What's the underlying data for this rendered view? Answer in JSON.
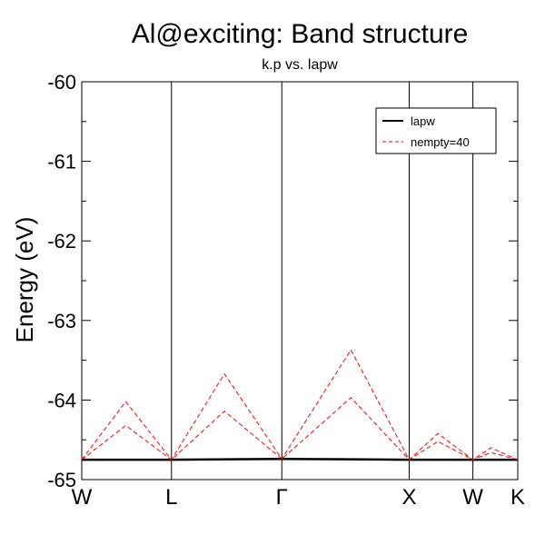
{
  "chart_data": {
    "type": "line",
    "title": "Al@exciting: Band structure",
    "subtitle": "k.p vs. lapw",
    "xlabel": "",
    "ylabel": "Energy (eV)",
    "ylim": [
      -65,
      -60
    ],
    "yticks": [
      "-65",
      "-64",
      "-63",
      "-62",
      "-61",
      "-60"
    ],
    "xlim": [
      0,
      4.86
    ],
    "xticks": [
      {
        "label": "W",
        "x": 0
      },
      {
        "label": "L",
        "x": 1.0
      },
      {
        "label": "Γ",
        "x": 2.23
      },
      {
        "label": "X",
        "x": 3.65
      },
      {
        "label": "W",
        "x": 4.36
      },
      {
        "label": "K",
        "x": 4.86
      }
    ],
    "vertical_lines_at": [
      1.0,
      2.23,
      3.65,
      4.36
    ],
    "legend": {
      "position": "top-right"
    },
    "series": [
      {
        "name": "lapw",
        "color": "#000000",
        "style": "solid",
        "x": [
          0,
          1.0,
          2.23,
          3.65,
          4.36,
          4.86
        ],
        "y": [
          -64.75,
          -64.75,
          -64.74,
          -64.75,
          -64.75,
          -64.75
        ]
      },
      {
        "name": "nempty=40",
        "color": "#ff0000",
        "style": "dashed",
        "bands": [
          {
            "x": [
              0,
              0.49,
              1.0,
              1.59,
              2.23,
              3.0,
              3.65,
              3.97,
              4.36,
              4.56,
              4.86
            ],
            "y": [
              -64.75,
              -64.02,
              -64.75,
              -63.67,
              -64.74,
              -63.37,
              -64.75,
              -64.42,
              -64.75,
              -64.6,
              -64.75
            ]
          },
          {
            "x": [
              0,
              0.49,
              1.0,
              1.59,
              2.23,
              3.0,
              3.65,
              3.97,
              4.36,
              4.56,
              4.86
            ],
            "y": [
              -64.75,
              -64.32,
              -64.75,
              -64.14,
              -64.74,
              -63.97,
              -64.75,
              -64.52,
              -64.75,
              -64.66,
              -64.75
            ]
          }
        ]
      }
    ]
  }
}
